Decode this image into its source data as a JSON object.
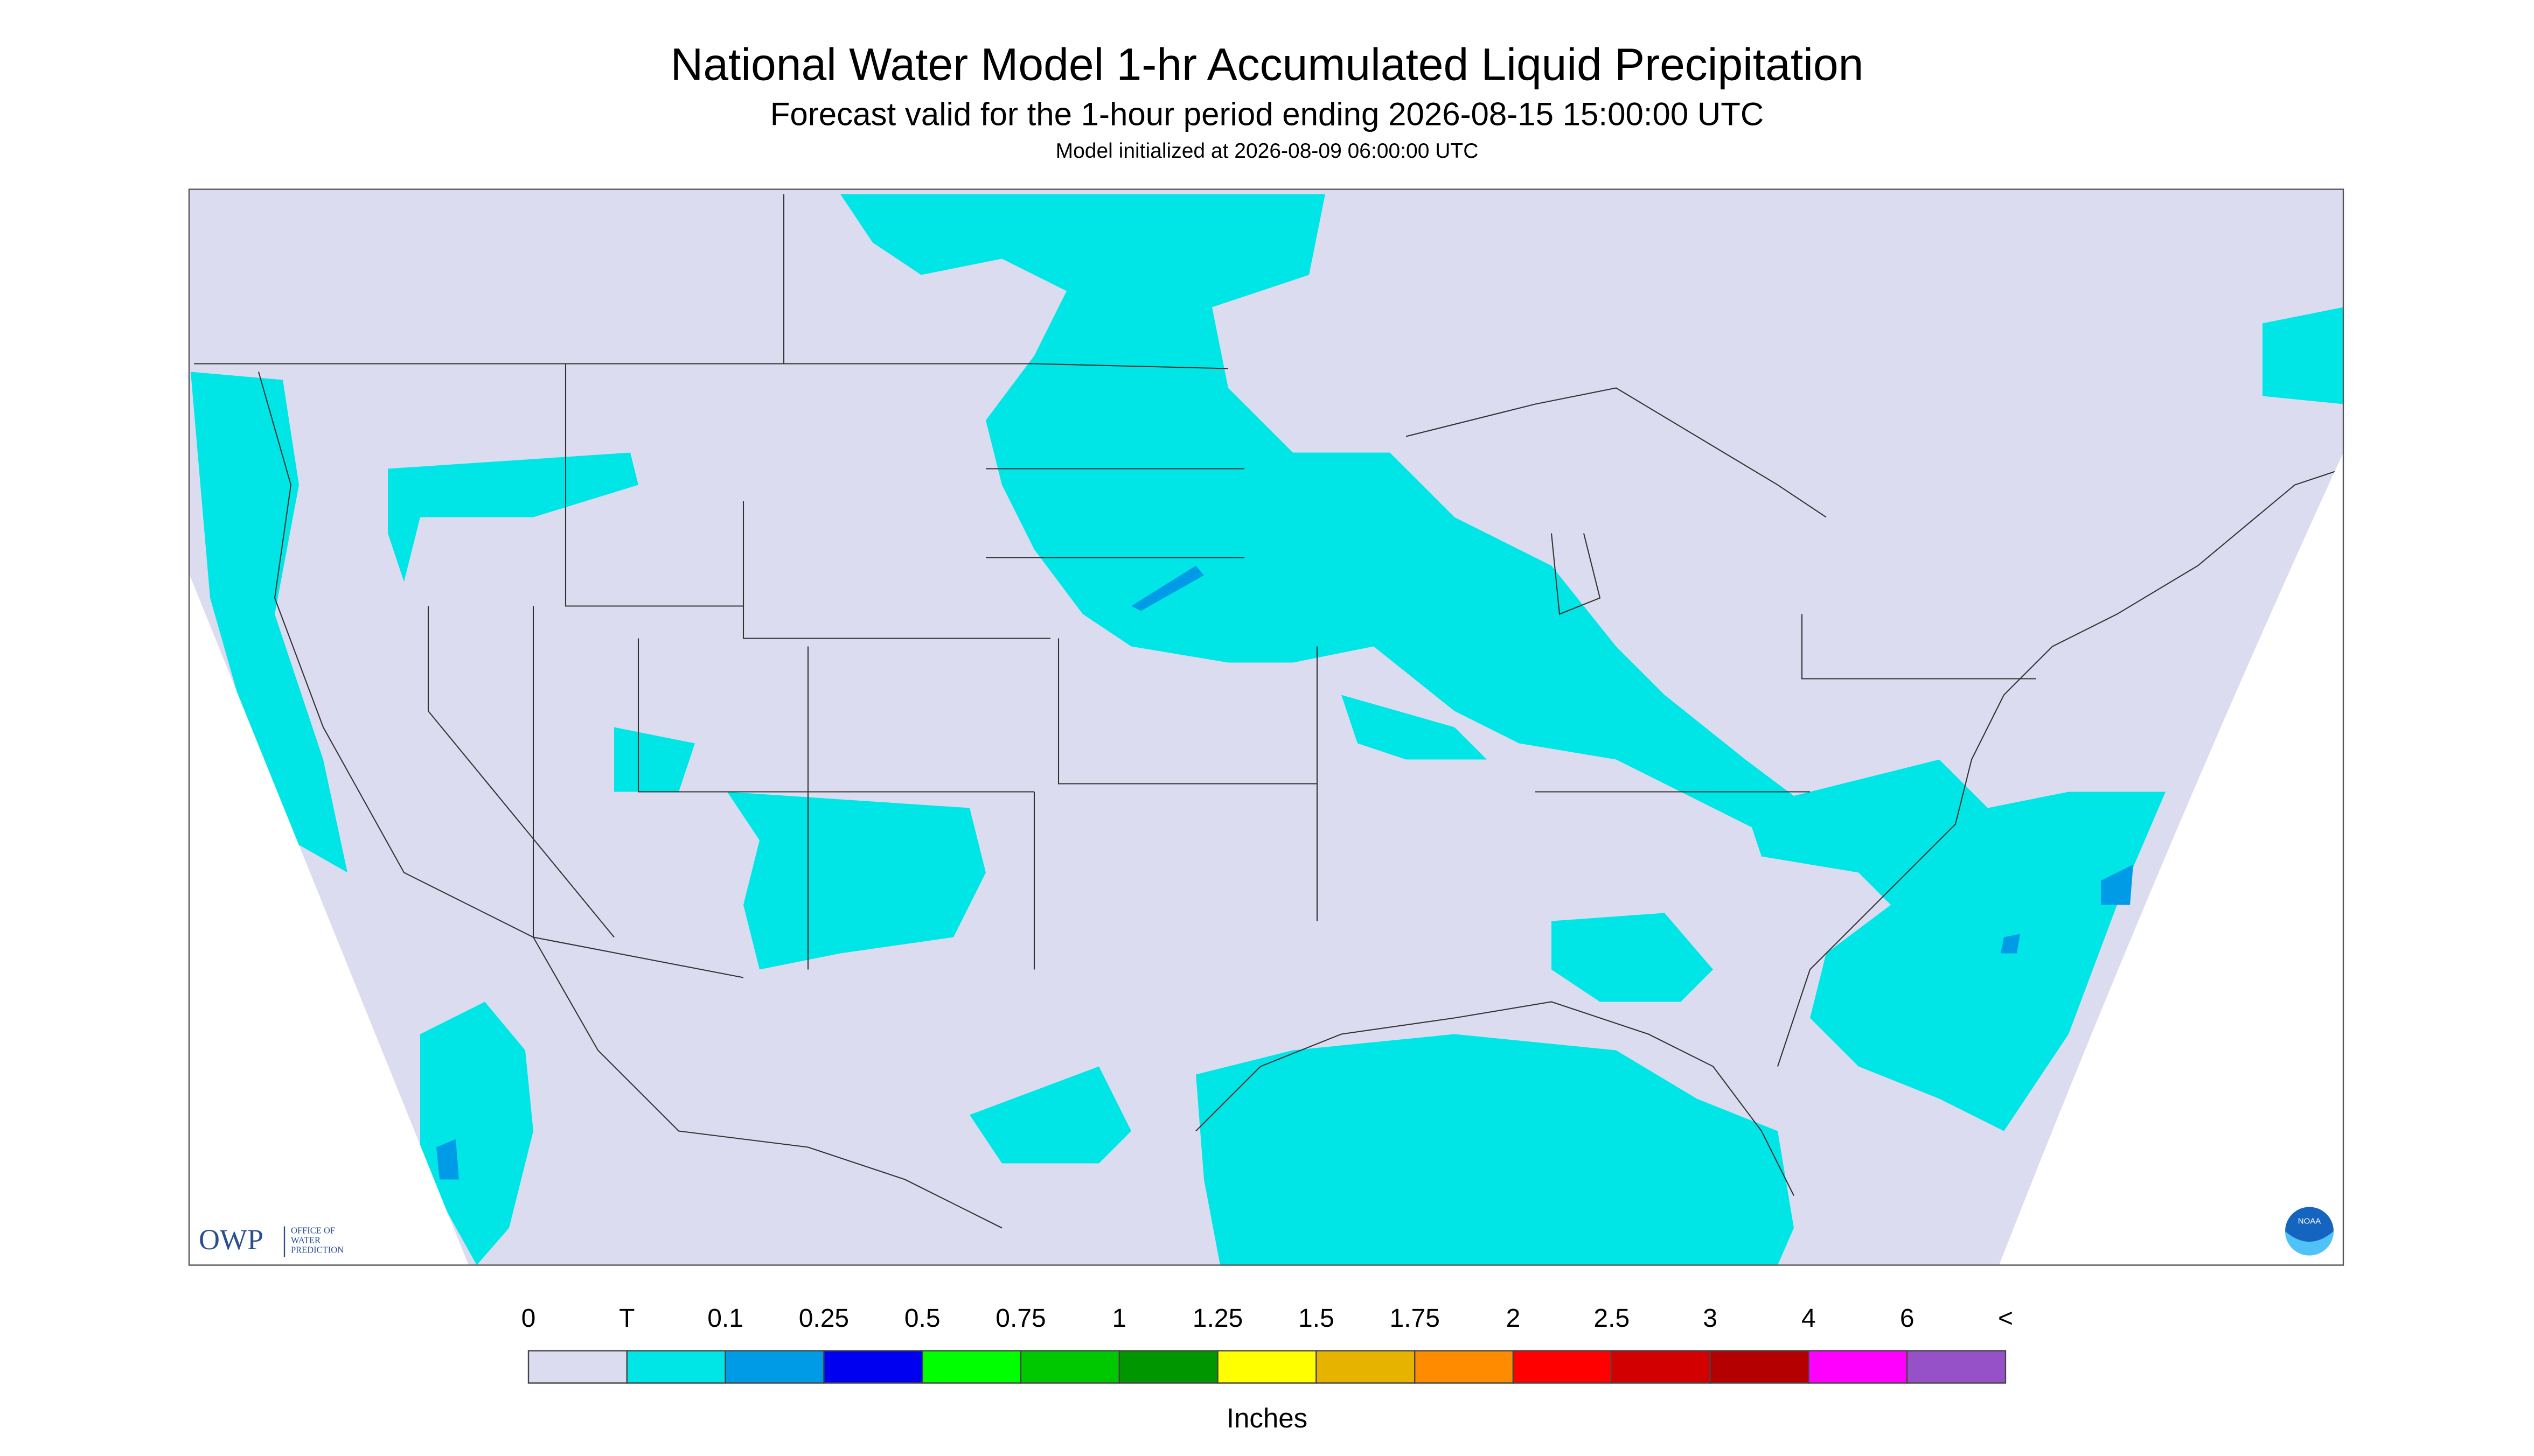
{
  "header": {
    "title": "National Water Model 1-hr Accumulated Liquid Precipitation",
    "subtitle": "Forecast valid for the 1-hour period ending 2026-08-15 15:00:00 UTC",
    "note": "Model initialized at 2026-08-09 06:00:00 UTC"
  },
  "legend": {
    "labels": [
      "0",
      "T",
      "0.1",
      "0.25",
      "0.5",
      "0.75",
      "1",
      "1.25",
      "1.5",
      "1.75",
      "2",
      "2.5",
      "3",
      "4",
      "6",
      "<"
    ],
    "colors": [
      "#dcdcf0",
      "#00e6e6",
      "#009be6",
      "#0000f0",
      "#00ff00",
      "#00c800",
      "#009600",
      "#ffff00",
      "#e6b400",
      "#ff8c00",
      "#ff0000",
      "#d20000",
      "#b40000",
      "#ff00ff",
      "#9650c8"
    ],
    "unit": "Inches"
  },
  "logos": {
    "owp": "OWP",
    "owp_lines": [
      "OFFICE OF",
      "WATER",
      "PREDICTION"
    ],
    "noaa": "NOAA"
  }
}
